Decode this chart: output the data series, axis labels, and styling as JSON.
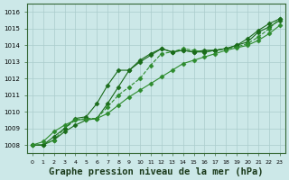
{
  "title": "Graphe pression niveau de la mer (hPa)",
  "xlabel": "Graphe pression niveau de la mer (hPa)",
  "x": [
    0,
    1,
    2,
    3,
    4,
    5,
    6,
    7,
    8,
    9,
    10,
    11,
    12,
    13,
    14,
    15,
    16,
    17,
    18,
    19,
    20,
    21,
    22,
    23
  ],
  "series1": [
    1008.0,
    1008.0,
    1008.3,
    1008.8,
    1009.2,
    1009.5,
    1009.6,
    1010.5,
    1011.5,
    1012.5,
    1013.1,
    1013.5,
    1013.8,
    1013.6,
    1013.7,
    1013.6,
    1013.7,
    1013.7,
    1013.8,
    1014.0,
    1014.2,
    1014.8,
    1015.1,
    1015.5
  ],
  "series2": [
    1008.0,
    1008.0,
    1008.3,
    1009.0,
    1009.5,
    1009.6,
    1009.6,
    1010.3,
    1011.0,
    1011.5,
    1012.0,
    1012.8,
    1013.5,
    1013.6,
    1013.8,
    1013.7,
    1013.6,
    1013.7,
    1013.8,
    1013.9,
    1014.1,
    1014.5,
    1015.0,
    1015.6
  ],
  "series3": [
    1008.0,
    1008.0,
    1008.5,
    1009.0,
    1009.6,
    1009.7,
    1010.5,
    1011.6,
    1012.5,
    1012.5,
    1013.0,
    1013.4,
    1013.8,
    1013.6,
    1013.7,
    1013.6,
    1013.6,
    1013.7,
    1013.8,
    1014.0,
    1014.4,
    1014.9,
    1015.3,
    1015.6
  ],
  "series4": [
    1008.0,
    1008.2,
    1008.8,
    1009.2,
    1009.5,
    1009.55,
    1009.6,
    1009.9,
    1010.4,
    1010.9,
    1011.3,
    1011.7,
    1012.1,
    1012.5,
    1012.9,
    1013.1,
    1013.3,
    1013.5,
    1013.7,
    1013.85,
    1014.0,
    1014.3,
    1014.7,
    1015.2
  ],
  "line_color": "#1a6b1a",
  "line_color2": "#2d8b2d",
  "bg_color": "#cce8e8",
  "grid_color": "#aacccc",
  "ylim": [
    1007.5,
    1016.5
  ],
  "yticks": [
    1008,
    1009,
    1010,
    1011,
    1012,
    1013,
    1014,
    1015,
    1016
  ],
  "xticks": [
    0,
    1,
    2,
    3,
    4,
    5,
    6,
    7,
    8,
    9,
    10,
    11,
    12,
    13,
    14,
    15,
    16,
    17,
    18,
    19,
    20,
    21,
    22,
    23
  ],
  "title_fontsize": 7.5,
  "tick_fontsize": 5.5
}
